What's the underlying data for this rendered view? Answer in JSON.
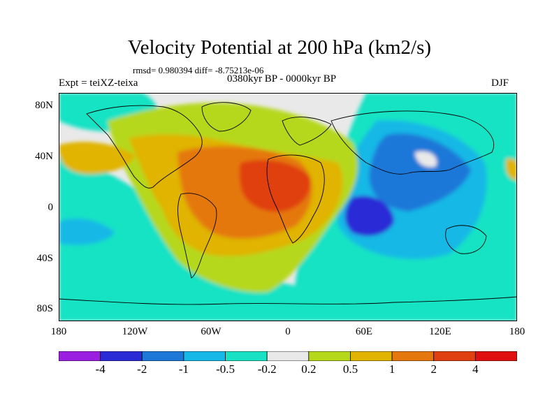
{
  "map": {
    "title": "Velocity Potential at 200 hPa (km2/s)",
    "stats": "rmsd= 0.980394 diff= -8.75213e-06",
    "experiment": "Expt = teiXZ-teixa",
    "period": "0380kyr BP - 0000kyr BP",
    "season": "DJF",
    "lat_labels": [
      "80N",
      "40N",
      "0",
      "40S",
      "80S"
    ],
    "lon_labels": [
      "180",
      "120W",
      "60W",
      "0",
      "60E",
      "120E",
      "180"
    ],
    "colorbar": {
      "colors": [
        "#9b1fe0",
        "#2b2bd6",
        "#1d78d8",
        "#15b8e6",
        "#19e2c4",
        "#e9e9e9",
        "#b5d81a",
        "#e0b400",
        "#e4780f",
        "#e04010",
        "#e01010"
      ],
      "labels": [
        "-4",
        "-2",
        "-1",
        "-0.5",
        "-0.2",
        "0.2",
        "0.5",
        "1",
        "2",
        "4"
      ]
    }
  }
}
